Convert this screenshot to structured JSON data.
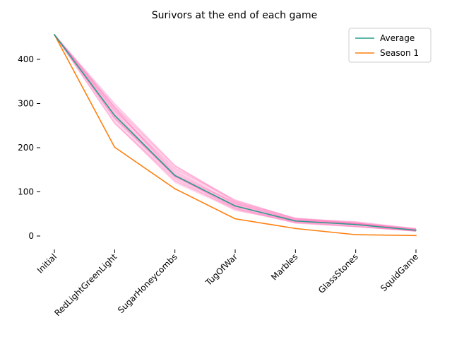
{
  "chart_data": {
    "type": "line",
    "title": "Surivors at the end of each game",
    "xlabel": "",
    "ylabel": "",
    "categories": [
      "Initial",
      "RedLightGreenLight",
      "SugarHoneycombs",
      "TugOfWar",
      "Marbles",
      "GlassStones",
      "SquidGame"
    ],
    "y_ticks": [
      0,
      100,
      200,
      300,
      400
    ],
    "ylim": [
      -20,
      470
    ],
    "grid": false,
    "legend_position": "top-right",
    "series": [
      {
        "name": "Average",
        "color": "#2a9d8f",
        "values": [
          456,
          273,
          137,
          68,
          34,
          26,
          13
        ]
      },
      {
        "name": "Season 1",
        "color": "#ff7f0e",
        "values": [
          456,
          201,
          107,
          39,
          17,
          3,
          1
        ]
      }
    ],
    "simulation_band": {
      "color": "#ff69b4",
      "lower": [
        456,
        255,
        120,
        58,
        29,
        21,
        10
      ],
      "upper": [
        456,
        300,
        160,
        82,
        41,
        33,
        17
      ]
    }
  }
}
